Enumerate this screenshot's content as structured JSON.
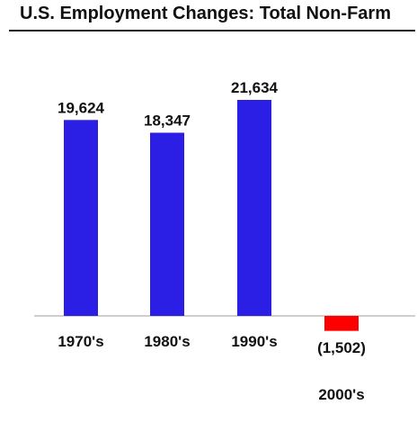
{
  "chart_data": {
    "type": "bar",
    "title": "U.S. Employment Changes:  Total Non-Farm",
    "categories": [
      "1970's",
      "1980's",
      "1990's",
      "2000's"
    ],
    "values": [
      19624,
      18347,
      21634,
      -1502
    ],
    "value_labels": [
      "19,624",
      "18,347",
      "21,634",
      "(1,502)"
    ],
    "xlabel": "",
    "ylabel": "",
    "ylim": [
      -1600,
      22000
    ],
    "grid": false,
    "colors": {
      "positive": "#2b1fe6",
      "negative": "#ff0000",
      "axis": "#bfbfbf"
    }
  }
}
